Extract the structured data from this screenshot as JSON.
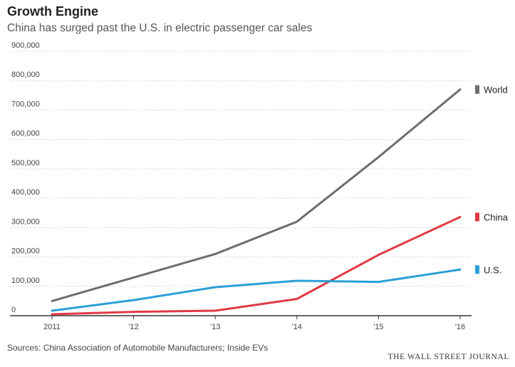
{
  "chart_data": {
    "type": "line",
    "title": "Growth Engine",
    "subtitle": "China has surged past the U.S. in electric passenger car sales",
    "x": [
      "2011",
      "'12",
      "'13",
      "'14",
      "'15",
      "'16"
    ],
    "ylim": [
      0,
      900000
    ],
    "y_ticks": [
      "0",
      "100,000",
      "200,000",
      "300,000",
      "400,000",
      "500,000",
      "600,000",
      "700,000",
      "800,000",
      "900,000"
    ],
    "grid": "horizontal dotted",
    "legend": "right end labels",
    "series": [
      {
        "name": "World",
        "color": "#6d6d6d",
        "values": [
          50000,
          130000,
          210000,
          320000,
          540000,
          770000
        ]
      },
      {
        "name": "China",
        "color": "#e03a44",
        "values": [
          5000,
          13000,
          17000,
          57000,
          207000,
          336000
        ]
      },
      {
        "name": "U.S.",
        "color": "#2b9fd6",
        "values": [
          17000,
          53000,
          97000,
          119000,
          115000,
          157000
        ]
      }
    ],
    "source": "Sources: China Association of Automobile Manufacturers; Inside EVs",
    "publisher": "THE WALL STREET JOURNAL"
  }
}
